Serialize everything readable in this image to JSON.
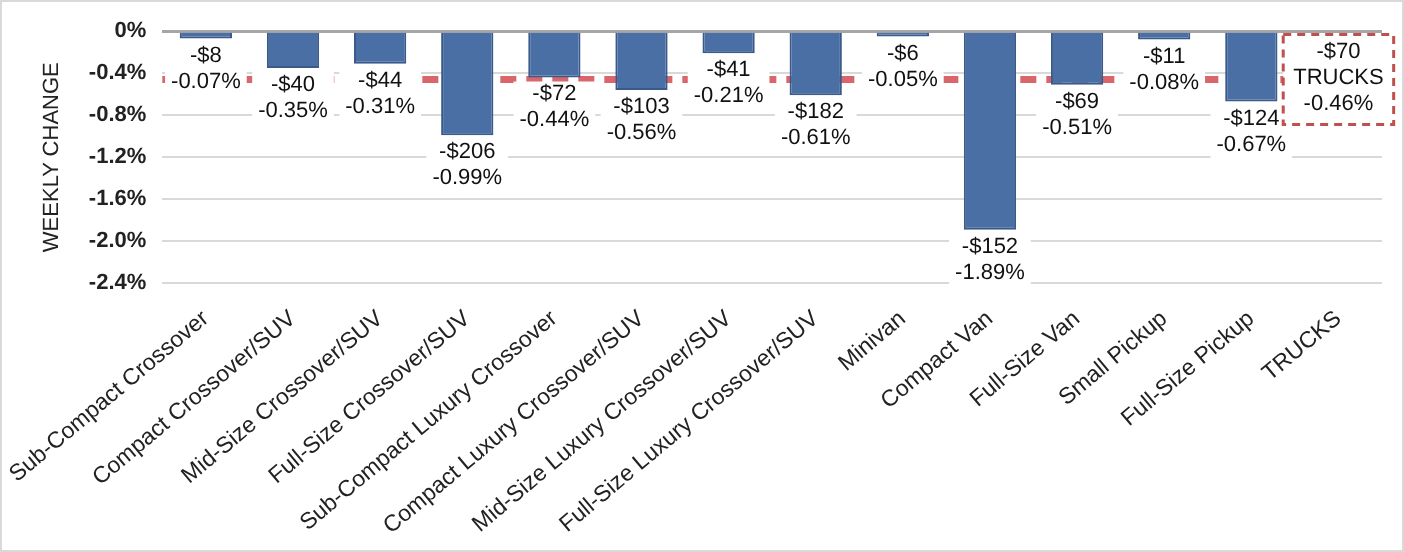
{
  "chart_data": {
    "type": "bar",
    "ylabel": "WEEKLY CHANGE",
    "categories": [
      "Sub-Compact Crossover",
      "Compact Crossover/SUV",
      "Mid-Size Crossover/SUV",
      "Full-Size Crossover/SUV",
      "Sub-Compact Luxury Crossover",
      "Compact Luxury Crossover/SUV",
      "Mid-Size Luxury Crossover/SUV",
      "Full-Size Luxury Crossover/SUV",
      "Minivan",
      "Compact Van",
      "Full-Size Van",
      "Small Pickup",
      "Full-Size Pickup",
      "TRUCKS"
    ],
    "values": [
      -0.07,
      -0.35,
      -0.31,
      -0.99,
      -0.44,
      -0.56,
      -0.21,
      -0.61,
      -0.05,
      -1.89,
      -0.51,
      -0.08,
      -0.67,
      null
    ],
    "value_labels": [
      "-$8\n-0.07%",
      "-$40\n-0.35%",
      "-$44\n-0.31%",
      "-$206\n-0.99%",
      "-$72\n-0.44%",
      "-$103\n-0.56%",
      "-$41\n-0.21%",
      "-$182\n-0.61%",
      "-$6\n-0.05%",
      "-$152\n-1.89%",
      "-$69\n-0.51%",
      "-$11\n-0.08%",
      "-$124\n-0.67%",
      null
    ],
    "color": "#4a6fa5",
    "ylim": [
      -2.4,
      0
    ],
    "yticks": [
      {
        "value": 0,
        "label": "0%"
      },
      {
        "value": -0.4,
        "label": "-0.4%"
      },
      {
        "value": -0.8,
        "label": "-0.8%"
      },
      {
        "value": -1.2,
        "label": "-1.2%"
      },
      {
        "value": -1.6,
        "label": "-1.6%"
      },
      {
        "value": -2.0,
        "label": "-2.0%"
      },
      {
        "value": -2.4,
        "label": "-2.4%"
      }
    ],
    "grid": "y",
    "legend": false,
    "ref_lines": [
      {
        "axis": "y",
        "value": -0.46,
        "color": "#d9666a",
        "line_style": "dashed"
      }
    ],
    "annotations": [
      {
        "text": "-$70\nTRUCKS\n-0.46%",
        "x": "TRUCKS",
        "y": -0.46
      }
    ]
  }
}
